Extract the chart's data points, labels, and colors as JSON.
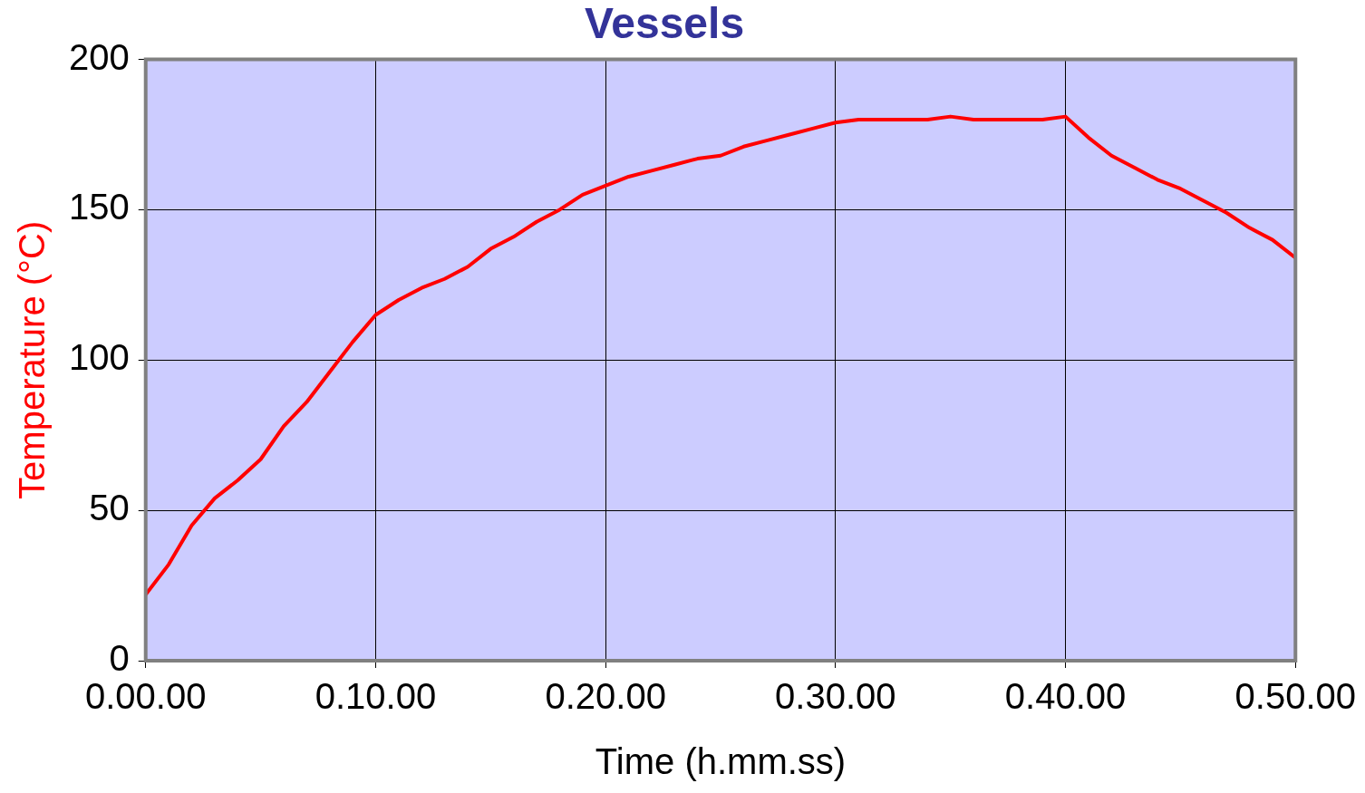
{
  "chart_data": {
    "type": "line",
    "title": "Vessels",
    "xlabel": "Time (h.mm.ss)",
    "ylabel": "Temperature (°C)",
    "categories": [
      "0.00.00",
      null,
      null,
      null,
      null,
      null,
      null,
      null,
      null,
      null,
      "0.10.00",
      null,
      null,
      null,
      null,
      null,
      null,
      null,
      null,
      null,
      "0.20.00",
      null,
      null,
      null,
      null,
      null,
      null,
      null,
      null,
      null,
      "0.30.00",
      null,
      null,
      null,
      null,
      null,
      null,
      null,
      null,
      null,
      "0.40.00",
      null,
      null,
      null,
      null,
      null,
      null,
      null,
      null,
      null,
      "0.50.00"
    ],
    "series": [
      {
        "color": "#ff0000",
        "values": [
          22,
          32,
          45,
          54,
          60,
          67,
          78,
          86,
          96,
          106,
          115,
          120,
          124,
          127,
          131,
          137,
          141,
          146,
          150,
          155,
          158,
          161,
          163,
          165,
          167,
          168,
          171,
          173,
          175,
          177,
          179,
          180,
          180,
          180,
          180,
          181,
          180,
          180,
          180,
          180,
          181,
          174,
          168,
          164,
          160,
          157,
          153,
          149,
          144,
          140,
          134
        ]
      }
    ],
    "ylim": [
      0,
      200
    ],
    "yticks": [
      0,
      50,
      100,
      150,
      200
    ],
    "grid": true,
    "legend": false,
    "marker": "none",
    "line_style": "solid"
  }
}
